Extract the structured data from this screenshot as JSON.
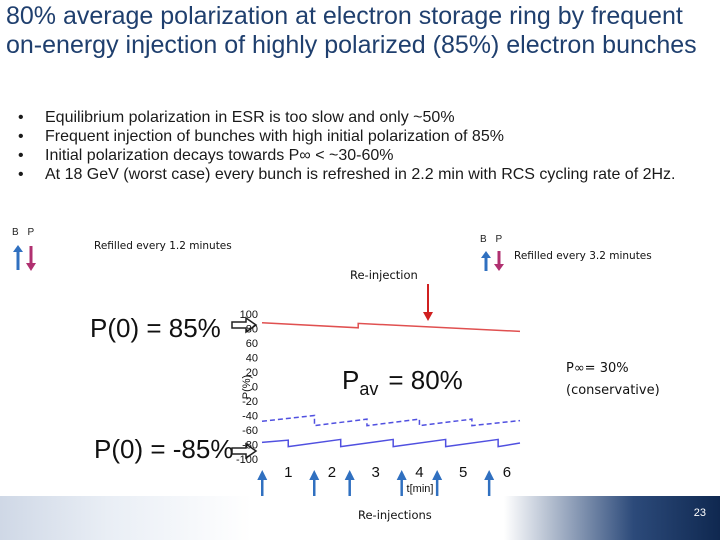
{
  "title": "80% average polarization at electron storage ring by frequent on-energy injection of highly polarized (85%) electron bunches",
  "bullets": [
    "Equilibrium polarization in ESR is too slow and only ~50%",
    "Frequent  injection of bunches with high initial polarization of 85%",
    "Initial polarization decays towards P∞ < ~30-60%",
    "At 18 GeV (worst case) every bunch is refreshed in 2.2 min with RCS cycling rate of 2Hz."
  ],
  "bullet_symbol": "•",
  "bp_left": "B P",
  "bp_right": "B P",
  "refill_left": "Refilled every 1.2 minutes",
  "refill_right": "Refilled every  3.2 minutes",
  "reinjection": "Re-injection",
  "reinjections": "Re-injections",
  "plot": {
    "p0_top": "P(0) = 85%",
    "p0_bottom": "P(0) = -85%",
    "pav": "P",
    "pav_sub": "av",
    "pav_value": "= 80%",
    "ylabel": "P(%)",
    "xlabel": "t[min]",
    "yticks": [
      "100",
      "80",
      "60",
      "40",
      "20",
      "0",
      "-20",
      "-40",
      "-60",
      "-80",
      "-100"
    ],
    "xticks": [
      "1",
      "2",
      "3",
      "4",
      "5",
      "6"
    ]
  },
  "pinf_line1": "P∞= 30%",
  "pinf_line2": "(conservative)",
  "page_number": "23",
  "colors": {
    "title": "#1f3f6e",
    "red_curve": "#e05050",
    "blue_curve": "#5050e0",
    "arrow_red": "#d02020",
    "arrow_blue": "#3070c0"
  },
  "chart_data": {
    "type": "line",
    "xlabel": "t[min]",
    "ylabel": "P(%)",
    "xlim": [
      0.4,
      6.3
    ],
    "ylim": [
      -100,
      100
    ],
    "series": [
      {
        "x": [
          0.4,
          2.6,
          2.6,
          6.3
        ],
        "y": [
          88,
          81,
          87,
          76
        ]
      },
      {
        "x": [
          0.4,
          1.0,
          1.0,
          2.2,
          2.2,
          3.4,
          3.4,
          4.6,
          4.6,
          5.8,
          5.8,
          6.3
        ],
        "y": [
          -77,
          -74,
          -83,
          -73,
          -83,
          -73,
          -83,
          -73,
          -83,
          -73,
          -83,
          -78
        ]
      },
      {
        "x": [
          0.4,
          1.6,
          1.6,
          2.8,
          2.8,
          4.0,
          4.0,
          5.2,
          5.2,
          6.3
        ],
        "y": [
          -48,
          -40,
          -54,
          -45,
          -54,
          -45,
          -54,
          -45,
          -54,
          -47
        ]
      }
    ]
  }
}
